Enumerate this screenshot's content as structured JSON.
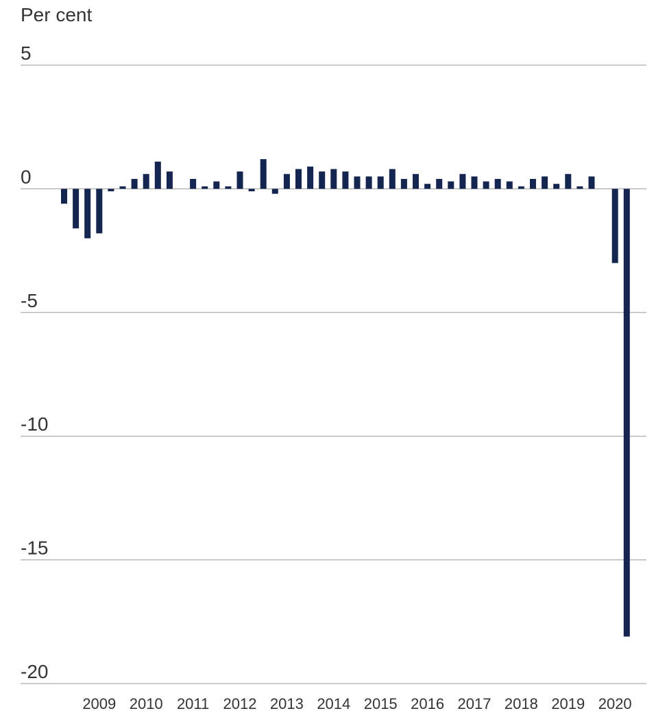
{
  "chart_data": {
    "type": "bar",
    "ylabel": "Per cent",
    "ylim": [
      -20,
      5
    ],
    "yticks": [
      5,
      0,
      -5,
      -10,
      -15,
      -20
    ],
    "grid": true,
    "x_tick_labels": [
      "2009",
      "2010",
      "2011",
      "2012",
      "2013",
      "2014",
      "2015",
      "2016",
      "2017",
      "2018",
      "2019",
      "2020"
    ],
    "first_quarter": "2008Q2",
    "series": [
      {
        "color": "#14254f",
        "values": [
          -0.6,
          -1.6,
          -2.0,
          -1.8,
          -0.1,
          0.1,
          0.4,
          0.6,
          1.1,
          0.7,
          0.0,
          0.4,
          0.1,
          0.3,
          0.1,
          0.7,
          -0.1,
          1.2,
          -0.2,
          0.6,
          0.8,
          0.9,
          0.7,
          0.8,
          0.7,
          0.5,
          0.5,
          0.5,
          0.8,
          0.4,
          0.6,
          0.2,
          0.4,
          0.3,
          0.6,
          0.5,
          0.3,
          0.4,
          0.3,
          0.1,
          0.4,
          0.5,
          0.2,
          0.6,
          0.1,
          0.5,
          0.0,
          -3.0,
          -18.1
        ]
      }
    ]
  }
}
